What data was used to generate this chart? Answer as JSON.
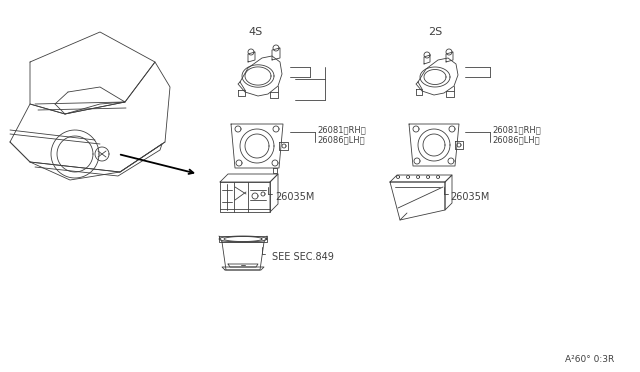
{
  "bg_color": "#ffffff",
  "line_color": "#404040",
  "text_color": "#404040",
  "lw": 0.6,
  "part_4s": "4S",
  "part_2s": "2S",
  "label_rh1": "26081〈RH〉",
  "label_lh1": "26086〈LH〉",
  "label_rh2": "26081〈RH〉",
  "label_lh2": "26086〈LH〉",
  "label_35m_4s": "26035M",
  "label_35m_2s": "26035M",
  "label_sec": "SEE SEC.849",
  "footer": "A²60° 0:3R"
}
